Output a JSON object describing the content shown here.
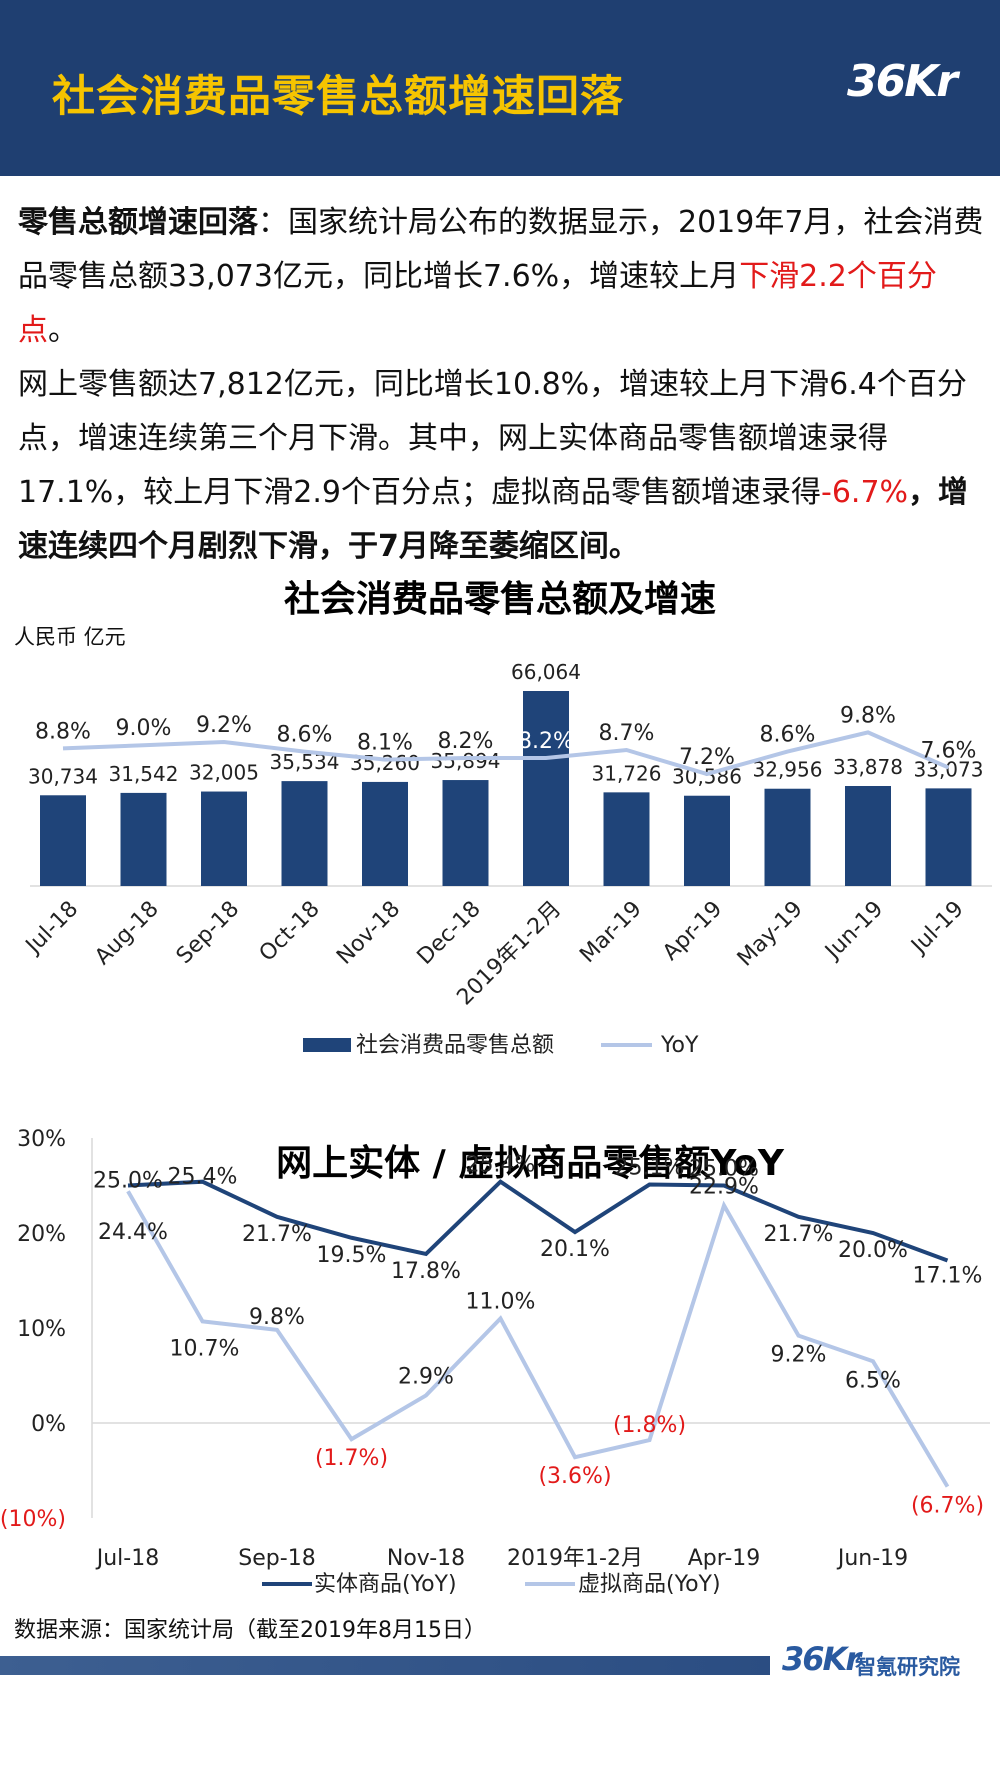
{
  "header": {
    "title": "社会消费品零售总额增速回落",
    "logo_text": "36Kr",
    "bg_color": "#1f3f71",
    "title_color": "#f6c400"
  },
  "intro": {
    "p1_bold": "零售总额增速回落",
    "p1_text": "：国家统计局公布的数据显示，2019年7月，社会消费品零售总额33,073亿元，同比增长7.6%，增速较上月",
    "p1_red": "下滑2.2个百分点",
    "p1_end": "。",
    "p2_text": "网上零售额达7,812亿元，同比增长10.8%，增速较上月下滑6.4个百分点，增速连续第三个月下滑。其中，网上实体商品零售额增速录得17.1%，较上月下滑2.9个百分点；虚拟商品零售额增速录得",
    "p2_red": "-6.7%",
    "p2_bold": "，增速连续四个月剧烈下滑，于7月降至萎缩区间。"
  },
  "chart_data": [
    {
      "type": "bar",
      "title": "社会消费品零售总额及增速",
      "ylabel": "人民币 亿元",
      "categories": [
        "Jul-18",
        "Aug-18",
        "Sep-18",
        "Oct-18",
        "Nov-18",
        "Dec-18",
        "2019年1-2月",
        "Mar-19",
        "Apr-19",
        "May-19",
        "Jun-19",
        "Jul-19"
      ],
      "series": [
        {
          "name": "社会消费品零售总额",
          "values": [
            30734,
            31542,
            32005,
            35534,
            35260,
            35894,
            66064,
            31726,
            30586,
            32956,
            33878,
            33073
          ],
          "labels": [
            "30,734",
            "31,542",
            "32,005",
            "35,534",
            "35,260",
            "35,894",
            "66,064",
            "31,726",
            "30,586",
            "32,956",
            "33,878",
            "33,073"
          ],
          "color": "#1f4479"
        },
        {
          "name": "YoY",
          "values": [
            8.8,
            9.0,
            9.2,
            8.6,
            8.1,
            8.2,
            8.2,
            8.7,
            7.2,
            8.6,
            9.8,
            7.6
          ],
          "labels": [
            "8.8%",
            "9.0%",
            "9.2%",
            "8.6%",
            "8.1%",
            "8.2%",
            "8.2%",
            "8.7%",
            "7.2%",
            "8.6%",
            "9.8%",
            "7.6%"
          ],
          "color": "#b4c6e7"
        }
      ],
      "legend": "bottom"
    },
    {
      "type": "line",
      "title": "网上实体 / 虚拟商品零售额YoY",
      "categories": [
        "Jul-18",
        "Aug-18",
        "Sep-18",
        "Oct-18",
        "Nov-18",
        "Dec-18",
        "2019年1-2月",
        "Mar-19",
        "Apr-19",
        "May-19",
        "Jun-19",
        "Jul-19"
      ],
      "x_tick_labels": [
        "Jul-18",
        "Sep-18",
        "Nov-18",
        "2019年1-2月",
        "Apr-19",
        "Jun-19"
      ],
      "y_tick_labels": [
        "30%",
        "20%",
        "10%",
        "0%",
        "(10%)"
      ],
      "ylim": [
        -10,
        30
      ],
      "series": [
        {
          "name": "实体商品(YoY)",
          "values": [
            25.0,
            25.4,
            21.7,
            19.5,
            17.8,
            25.4,
            20.1,
            25.1,
            25.0,
            21.7,
            20.0,
            17.1
          ],
          "labels": [
            "25.0%",
            "25.4%",
            "21.7%",
            "19.5%",
            "17.8%",
            "25.4%",
            "20.1%",
            "25.1%",
            "25.0%",
            "21.7%",
            "20.0%",
            "17.1%"
          ],
          "color": "#1f4479"
        },
        {
          "name": "虚拟商品(YoY)",
          "values": [
            24.4,
            10.7,
            9.8,
            -1.7,
            2.9,
            11.0,
            -3.6,
            -1.8,
            22.9,
            9.2,
            6.5,
            -6.7
          ],
          "labels": [
            "24.4%",
            "10.7%",
            "9.8%",
            "(1.7%)",
            "2.9%",
            "11.0%",
            "(3.6%)",
            "(1.8%)",
            "22.9%",
            "9.2%",
            "6.5%",
            "(6.7%)"
          ],
          "color": "#b4c6e7"
        }
      ],
      "negative_label_color": "#e21a1a",
      "legend": "bottom"
    }
  ],
  "footer": {
    "source": "数据来源：国家统计局（截至2019年8月15日）",
    "logo_text": "36Kr",
    "org_name": "智氪研究院"
  }
}
